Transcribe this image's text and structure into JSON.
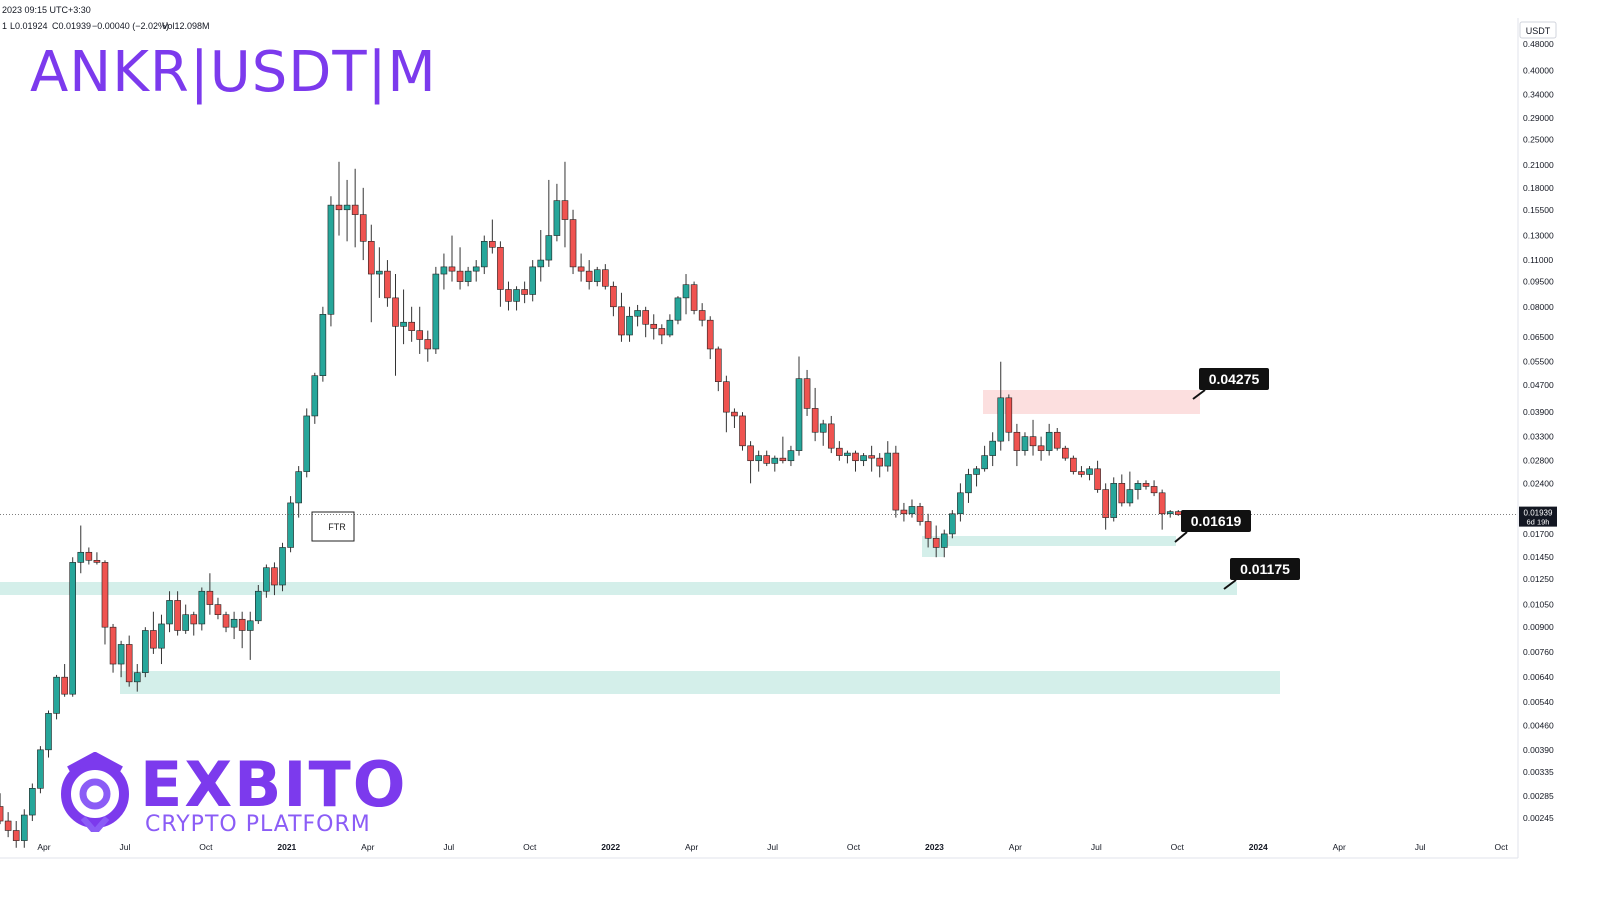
{
  "topbar": {
    "date": "2023 09:15 UTC+3:30",
    "open_frag": "1",
    "low": "L0.01924",
    "close": "C0.01939",
    "change": "−0.00040 (−2.02%)",
    "volume": "Vol12.098M"
  },
  "title": "ANKR|USDT|M",
  "logo": {
    "name": "EXBITO",
    "tagline": "CRYPTO PLATFORM"
  },
  "colors": {
    "up": "#26a69a",
    "down": "#ef5350",
    "brand": "#7c3aed",
    "zone": "#d4efea",
    "supply": "#fcd9d9"
  },
  "chart_data": {
    "type": "candlestick",
    "scale": "log",
    "currency_label": "USDT",
    "price_ticks": [
      "0.48000",
      "0.40000",
      "0.34000",
      "0.29000",
      "0.25000",
      "0.21000",
      "0.18000",
      "0.15500",
      "0.13000",
      "0.11000",
      "0.09500",
      "0.08000",
      "0.06500",
      "0.05500",
      "0.04700",
      "0.03900",
      "0.03300",
      "0.02800",
      "0.02400",
      "0.01700",
      "0.01450",
      "0.01250",
      "0.01050",
      "0.00900",
      "0.00760",
      "0.00640",
      "0.00540",
      "0.00460",
      "0.00390",
      "0.00335",
      "0.00285",
      "0.00245"
    ],
    "time_ticks": [
      "Apr",
      "Jul",
      "Oct",
      "2021",
      "Apr",
      "Jul",
      "Oct",
      "2022",
      "Apr",
      "Jul",
      "Oct",
      "2023",
      "Apr",
      "Jul",
      "Oct",
      "2024",
      "Apr",
      "Jul",
      "Oct"
    ],
    "current_price": "0.01939",
    "countdown": "6d 19h",
    "annotations": [
      {
        "label": "0.04275",
        "kind": "supply-zone"
      },
      {
        "label": "0.01619",
        "kind": "demand-zone"
      },
      {
        "label": "0.01175",
        "kind": "demand-zone"
      },
      {
        "label": "FTR",
        "kind": "box"
      }
    ],
    "candles": [
      [
        "2020-03",
        0.00295,
        0.00305,
        0.0025,
        0.00265
      ],
      [
        "2020-04",
        0.00265,
        0.0029,
        0.00235,
        0.0024
      ],
      [
        "2020-05",
        0.0024,
        0.00255,
        0.00215,
        0.00225
      ],
      [
        "2020-06",
        0.00225,
        0.0024,
        0.002,
        0.0021
      ],
      [
        "2020-07",
        0.0021,
        0.0026,
        0.002,
        0.0025
      ],
      [
        "2020-08",
        0.0025,
        0.0031,
        0.0024,
        0.003
      ],
      [
        "2020-09",
        0.003,
        0.004,
        0.0029,
        0.0039
      ],
      [
        "2020-10",
        0.0039,
        0.0051,
        0.0037,
        0.005
      ],
      [
        "2020-11",
        0.005,
        0.0065,
        0.0048,
        0.0064
      ],
      [
        "2020-12",
        0.0064,
        0.007,
        0.0056,
        0.0057
      ],
      [
        "2021-01",
        0.0057,
        0.0145,
        0.0056,
        0.014
      ],
      [
        "2021-02",
        0.014,
        0.018,
        0.013,
        0.015
      ],
      [
        "2021-03",
        0.015,
        0.0155,
        0.0138,
        0.0142
      ],
      [
        "2021-04",
        0.0142,
        0.015,
        0.0138,
        0.014
      ],
      [
        "2021-05",
        0.014,
        0.0142,
        0.008,
        0.009
      ],
      [
        "2021-06",
        0.009,
        0.0092,
        0.0066,
        0.007
      ],
      [
        "2021-07",
        0.007,
        0.0082,
        0.0064,
        0.008
      ],
      [
        "2021-08",
        0.008,
        0.0085,
        0.006,
        0.0062
      ],
      [
        "2021-09",
        0.0062,
        0.007,
        0.0058,
        0.0066
      ],
      [
        "2021-10",
        0.0066,
        0.009,
        0.0064,
        0.0088
      ],
      [
        "2021-11",
        0.0088,
        0.01,
        0.0075,
        0.0078
      ],
      [
        "2021-12",
        0.0078,
        0.0098,
        0.007,
        0.0092
      ],
      [
        "2022-01",
        0.0092,
        0.0115,
        0.0087,
        0.0108
      ],
      [
        "2022-02",
        0.0108,
        0.0115,
        0.0085,
        0.0088
      ],
      [
        "2022-03",
        0.0088,
        0.0105,
        0.0086,
        0.0098
      ],
      [
        "2022-04",
        0.0098,
        0.01,
        0.0085,
        0.0092
      ],
      [
        "2022-05",
        0.0092,
        0.0118,
        0.0088,
        0.0115
      ],
      [
        "2022-06",
        0.0115,
        0.013,
        0.0098,
        0.0105
      ],
      [
        "2022-07",
        0.0105,
        0.011,
        0.0095,
        0.0098
      ],
      [
        "2022-08",
        0.0098,
        0.01,
        0.0087,
        0.009
      ],
      [
        "2022-09",
        0.009,
        0.01,
        0.0083,
        0.0095
      ],
      [
        "2022-10",
        0.0095,
        0.01,
        0.0078,
        0.0088
      ],
      [
        "2022-11",
        0.0088,
        0.01,
        0.0072,
        0.0094
      ],
      [
        "2022-12",
        0.0094,
        0.012,
        0.0092,
        0.0115
      ],
      [
        "2023-01",
        0.0115,
        0.0138,
        0.011,
        0.0135
      ],
      [
        "2023-02",
        0.0135,
        0.014,
        0.0112,
        0.012
      ],
      [
        "2023-03",
        0.012,
        0.016,
        0.0115,
        0.0155
      ],
      [
        "2023-04",
        0.0155,
        0.022,
        0.015,
        0.021
      ],
      [
        "2023-05",
        0.021,
        0.027,
        0.019,
        0.026
      ],
      [
        "2023-06",
        0.026,
        0.04,
        0.025,
        0.038
      ],
      [
        "2023-07",
        0.038,
        0.051,
        0.036,
        0.05
      ],
      [
        "2023-08",
        0.05,
        0.08,
        0.048,
        0.076
      ],
      [
        "2023-09",
        0.076,
        0.17,
        0.07,
        0.16
      ],
      [
        "2023-10",
        0.16,
        0.215,
        0.13,
        0.155
      ],
      [
        "2023-11",
        0.155,
        0.19,
        0.125,
        0.16
      ],
      [
        "2023-12",
        0.16,
        0.205,
        0.12,
        0.15
      ],
      [
        "2024-01",
        0.15,
        0.18,
        0.11,
        0.125
      ],
      [
        "2024-02",
        0.125,
        0.14,
        0.072,
        0.1
      ],
      [
        "2024-03",
        0.1,
        0.12,
        0.085,
        0.102
      ],
      [
        "2024-04",
        0.102,
        0.11,
        0.08,
        0.085
      ],
      [
        "2024-05",
        0.085,
        0.1,
        0.05,
        0.07
      ],
      [
        "2024-06",
        0.07,
        0.09,
        0.062,
        0.072
      ],
      [
        "2024-07",
        0.072,
        0.08,
        0.063,
        0.068
      ],
      [
        "2024-08",
        0.068,
        0.08,
        0.058,
        0.064
      ],
      [
        "2024-09",
        0.064,
        0.068,
        0.055,
        0.06
      ],
      [
        "2024-10",
        0.06,
        0.105,
        0.058,
        0.1
      ],
      [
        "2024-11",
        0.1,
        0.115,
        0.09,
        0.105
      ],
      [
        "2024-12",
        0.105,
        0.13,
        0.095,
        0.102
      ],
      [
        "2025-01",
        0.102,
        0.12,
        0.09,
        0.095
      ],
      [
        "2025-02",
        0.095,
        0.105,
        0.092,
        0.102
      ],
      [
        "2025-03",
        0.102,
        0.11,
        0.095,
        0.105
      ],
      [
        "2025-04",
        0.105,
        0.13,
        0.1,
        0.125
      ],
      [
        "2025-05",
        0.125,
        0.145,
        0.115,
        0.12
      ],
      [
        "2025-06",
        0.12,
        0.125,
        0.08,
        0.09
      ],
      [
        "2025-07",
        0.09,
        0.095,
        0.078,
        0.083
      ],
      [
        "2025-08",
        0.083,
        0.092,
        0.078,
        0.09
      ],
      [
        "2025-09",
        0.09,
        0.095,
        0.082,
        0.087
      ],
      [
        "2025-10",
        0.087,
        0.11,
        0.083,
        0.105
      ],
      [
        "2025-11",
        0.105,
        0.135,
        0.095,
        0.11
      ],
      [
        "2025-12",
        0.11,
        0.19,
        0.105,
        0.13
      ],
      [
        "2026-01",
        0.13,
        0.185,
        0.125,
        0.165
      ],
      [
        "2026-02",
        0.165,
        0.215,
        0.12,
        0.145
      ],
      [
        "2026-03",
        0.145,
        0.155,
        0.1,
        0.105
      ],
      [
        "2026-04",
        0.105,
        0.115,
        0.095,
        0.102
      ],
      [
        "2026-05",
        0.102,
        0.11,
        0.09,
        0.095
      ],
      [
        "2026-06",
        0.095,
        0.105,
        0.092,
        0.103
      ],
      [
        "2026-07",
        0.103,
        0.107,
        0.09,
        0.092
      ],
      [
        "2026-08",
        0.092,
        0.095,
        0.075,
        0.08
      ],
      [
        "2026-09",
        0.08,
        0.088,
        0.063,
        0.066
      ],
      [
        "2026-10",
        0.066,
        0.08,
        0.063,
        0.075
      ],
      [
        "2026-11",
        0.075,
        0.081,
        0.07,
        0.078
      ],
      [
        "2026-12",
        0.078,
        0.08,
        0.065,
        0.071
      ],
      [
        "2027-01",
        0.071,
        0.076,
        0.064,
        0.069
      ],
      [
        "2027-02",
        0.069,
        0.071,
        0.062,
        0.066
      ],
      [
        "2027-03",
        0.066,
        0.076,
        0.065,
        0.073
      ],
      [
        "2027-04",
        0.073,
        0.086,
        0.071,
        0.085
      ],
      [
        "2027-05",
        0.085,
        0.1,
        0.076,
        0.093
      ],
      [
        "2027-06",
        0.093,
        0.095,
        0.076,
        0.078
      ],
      [
        "2027-07",
        0.078,
        0.082,
        0.07,
        0.073
      ],
      [
        "2027-08",
        0.073,
        0.075,
        0.056,
        0.06
      ],
      [
        "2027-09",
        0.06,
        0.061,
        0.045,
        0.048
      ],
      [
        "2027-10",
        0.048,
        0.05,
        0.034,
        0.039
      ],
      [
        "2027-11",
        0.039,
        0.04,
        0.035,
        0.038
      ],
      [
        "2027-12",
        0.038,
        0.039,
        0.03,
        0.031
      ],
      [
        "2028-01",
        0.031,
        0.032,
        0.024,
        0.028
      ],
      [
        "2028-02",
        0.028,
        0.03,
        0.026,
        0.029
      ],
      [
        "2028-03",
        0.029,
        0.03,
        0.027,
        0.0275
      ],
      [
        "2028-04",
        0.0275,
        0.029,
        0.026,
        0.0285
      ],
      [
        "2028-05",
        0.0285,
        0.033,
        0.0275,
        0.028
      ],
      [
        "2028-06",
        0.028,
        0.031,
        0.027,
        0.03
      ],
      [
        "2028-07",
        0.03,
        0.057,
        0.029,
        0.049
      ],
      [
        "2028-08",
        0.049,
        0.052,
        0.038,
        0.04
      ],
      [
        "2028-09",
        0.04,
        0.046,
        0.032,
        0.034
      ],
      [
        "2028-10",
        0.034,
        0.037,
        0.031,
        0.036
      ],
      [
        "2028-11",
        0.036,
        0.038,
        0.0295,
        0.0305
      ],
      [
        "2028-12",
        0.0305,
        0.032,
        0.028,
        0.029
      ],
      [
        "2029-01",
        0.029,
        0.03,
        0.0275,
        0.0295
      ],
      [
        "2029-02",
        0.0295,
        0.03,
        0.026,
        0.028
      ],
      [
        "2029-03",
        0.028,
        0.0295,
        0.027,
        0.029
      ],
      [
        "2029-04",
        0.029,
        0.031,
        0.026,
        0.0285
      ],
      [
        "2029-05",
        0.0285,
        0.0295,
        0.025,
        0.027
      ],
      [
        "2029-06",
        0.027,
        0.032,
        0.026,
        0.0295
      ],
      [
        "2029-07",
        0.0295,
        0.031,
        0.019,
        0.02
      ],
      [
        "2029-08",
        0.02,
        0.021,
        0.0185,
        0.0195
      ],
      [
        "2029-09",
        0.0195,
        0.0215,
        0.019,
        0.0205
      ],
      [
        "2029-10",
        0.0205,
        0.021,
        0.018,
        0.0185
      ],
      [
        "2029-11",
        0.0185,
        0.0195,
        0.0155,
        0.0165
      ],
      [
        "2029-12",
        0.0165,
        0.018,
        0.0145,
        0.0155
      ],
      [
        "2030-01",
        0.0155,
        0.0175,
        0.0145,
        0.017
      ],
      [
        "2030-02",
        0.017,
        0.02,
        0.0165,
        0.0195
      ],
      [
        "2030-03",
        0.0195,
        0.024,
        0.0185,
        0.0225
      ],
      [
        "2030-04",
        0.0225,
        0.0265,
        0.021,
        0.0255
      ],
      [
        "2030-05",
        0.0255,
        0.027,
        0.0235,
        0.0265
      ],
      [
        "2030-06",
        0.0265,
        0.031,
        0.026,
        0.029
      ],
      [
        "2030-07",
        0.029,
        0.034,
        0.027,
        0.032
      ],
      [
        "2030-08",
        0.032,
        0.055,
        0.03,
        0.043
      ],
      [
        "2030-09",
        0.043,
        0.044,
        0.032,
        0.034
      ],
      [
        "2030-10",
        0.034,
        0.036,
        0.027,
        0.03
      ],
      [
        "2030-11",
        0.03,
        0.034,
        0.029,
        0.033
      ],
      [
        "2030-12",
        0.033,
        0.037,
        0.029,
        0.031
      ],
      [
        "2031-01",
        0.031,
        0.033,
        0.028,
        0.03
      ],
      [
        "2031-02",
        0.03,
        0.036,
        0.029,
        0.034
      ],
      [
        "2031-03",
        0.034,
        0.035,
        0.03,
        0.0305
      ],
      [
        "2031-04",
        0.0305,
        0.031,
        0.028,
        0.0285
      ],
      [
        "2031-05",
        0.0285,
        0.029,
        0.0255,
        0.026
      ],
      [
        "2031-06",
        0.026,
        0.027,
        0.025,
        0.0255
      ],
      [
        "2031-07",
        0.0255,
        0.027,
        0.0245,
        0.0265
      ],
      [
        "2031-08",
        0.0265,
        0.028,
        0.0225,
        0.023
      ],
      [
        "2031-09",
        0.023,
        0.024,
        0.0175,
        0.019
      ],
      [
        "2031-10",
        0.019,
        0.025,
        0.0185,
        0.024
      ],
      [
        "2031-11",
        0.024,
        0.0255,
        0.0205,
        0.021
      ],
      [
        "2031-12",
        0.021,
        0.026,
        0.0205,
        0.023
      ],
      [
        "2032-01",
        0.023,
        0.0245,
        0.0215,
        0.024
      ],
      [
        "2032-02",
        0.024,
        0.0245,
        0.023,
        0.0235
      ],
      [
        "2032-03",
        0.0235,
        0.0245,
        0.022,
        0.0225
      ],
      [
        "2032-04",
        0.0225,
        0.023,
        0.0175,
        0.0195
      ],
      [
        "2032-05",
        0.0195,
        0.02,
        0.019,
        0.01979
      ],
      [
        "2032-06",
        0.01979,
        0.02,
        0.01924,
        0.01939
      ]
    ]
  }
}
